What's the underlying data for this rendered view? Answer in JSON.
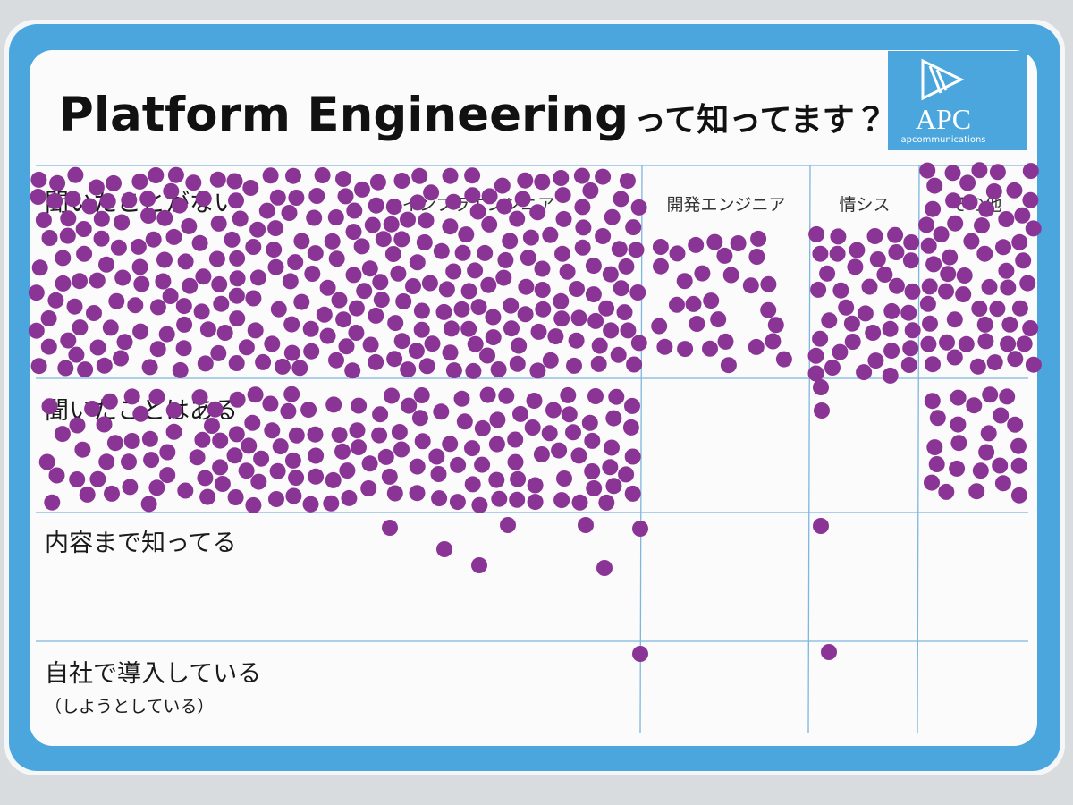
{
  "header": {
    "title": "Platform Engineering",
    "title_suffix": "って知ってます？"
  },
  "logo": {
    "name": "APC",
    "tagline": "apcommunications"
  },
  "table": {
    "columns": [
      "インフラエンジニア",
      "開発エンジニア",
      "情シス",
      "その他"
    ],
    "rows": [
      {
        "label": "聞いたことがない"
      },
      {
        "label": "聞いたことはある"
      },
      {
        "label": "内容まで知ってる"
      },
      {
        "label": "自社で導入している",
        "note": "（しようとしている）"
      }
    ]
  }
}
